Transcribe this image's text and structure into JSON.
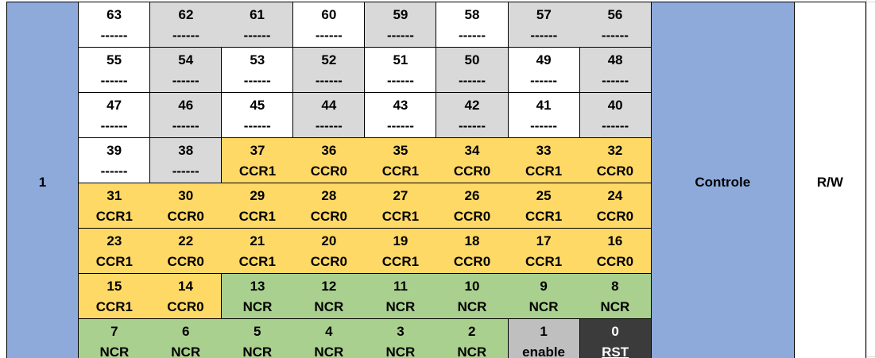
{
  "address": "1",
  "name": "Controle",
  "access": "R/W",
  "rows": [
    [
      {
        "num": "63",
        "label": "------",
        "color": "white"
      },
      {
        "num": "62",
        "label": "------",
        "color": "gray"
      },
      {
        "num": "61",
        "label": "------",
        "color": "gray"
      },
      {
        "num": "60",
        "label": "------",
        "color": "white"
      },
      {
        "num": "59",
        "label": "------",
        "color": "gray"
      },
      {
        "num": "58",
        "label": "------",
        "color": "white"
      },
      {
        "num": "57",
        "label": "------",
        "color": "gray"
      },
      {
        "num": "56",
        "label": "------",
        "color": "gray"
      }
    ],
    [
      {
        "num": "55",
        "label": "------",
        "color": "white"
      },
      {
        "num": "54",
        "label": "------",
        "color": "gray"
      },
      {
        "num": "53",
        "label": "------",
        "color": "white"
      },
      {
        "num": "52",
        "label": "------",
        "color": "gray"
      },
      {
        "num": "51",
        "label": "------",
        "color": "white"
      },
      {
        "num": "50",
        "label": "------",
        "color": "gray"
      },
      {
        "num": "49",
        "label": "------",
        "color": "white"
      },
      {
        "num": "48",
        "label": "------",
        "color": "gray"
      }
    ],
    [
      {
        "num": "47",
        "label": "------",
        "color": "white"
      },
      {
        "num": "46",
        "label": "------",
        "color": "gray"
      },
      {
        "num": "45",
        "label": "------",
        "color": "white"
      },
      {
        "num": "44",
        "label": "------",
        "color": "gray"
      },
      {
        "num": "43",
        "label": "------",
        "color": "white"
      },
      {
        "num": "42",
        "label": "------",
        "color": "gray"
      },
      {
        "num": "41",
        "label": "------",
        "color": "white"
      },
      {
        "num": "40",
        "label": "------",
        "color": "gray"
      }
    ],
    [
      {
        "num": "39",
        "label": "------",
        "color": "white"
      },
      {
        "num": "38",
        "label": "------",
        "color": "gray"
      },
      {
        "num": "37",
        "label": "CCR1",
        "color": "yellow"
      },
      {
        "num": "36",
        "label": "CCR0",
        "color": "yellow"
      },
      {
        "num": "35",
        "label": "CCR1",
        "color": "yellow"
      },
      {
        "num": "34",
        "label": "CCR0",
        "color": "yellow"
      },
      {
        "num": "33",
        "label": "CCR1",
        "color": "yellow"
      },
      {
        "num": "32",
        "label": "CCR0",
        "color": "yellow"
      }
    ],
    [
      {
        "num": "31",
        "label": "CCR1",
        "color": "yellow"
      },
      {
        "num": "30",
        "label": "CCR0",
        "color": "yellow"
      },
      {
        "num": "29",
        "label": "CCR1",
        "color": "yellow"
      },
      {
        "num": "28",
        "label": "CCR0",
        "color": "yellow"
      },
      {
        "num": "27",
        "label": "CCR1",
        "color": "yellow"
      },
      {
        "num": "26",
        "label": "CCR0",
        "color": "yellow"
      },
      {
        "num": "25",
        "label": "CCR1",
        "color": "yellow"
      },
      {
        "num": "24",
        "label": "CCR0",
        "color": "yellow"
      }
    ],
    [
      {
        "num": "23",
        "label": "CCR1",
        "color": "yellow"
      },
      {
        "num": "22",
        "label": "CCR0",
        "color": "yellow"
      },
      {
        "num": "21",
        "label": "CCR1",
        "color": "yellow"
      },
      {
        "num": "20",
        "label": "CCR0",
        "color": "yellow"
      },
      {
        "num": "19",
        "label": "CCR1",
        "color": "yellow"
      },
      {
        "num": "18",
        "label": "CCR0",
        "color": "yellow"
      },
      {
        "num": "17",
        "label": "CCR1",
        "color": "yellow"
      },
      {
        "num": "16",
        "label": "CCR0",
        "color": "yellow"
      }
    ],
    [
      {
        "num": "15",
        "label": "CCR1",
        "color": "yellow"
      },
      {
        "num": "14",
        "label": "CCR0",
        "color": "yellow"
      },
      {
        "num": "13",
        "label": "NCR",
        "color": "green"
      },
      {
        "num": "12",
        "label": "NCR",
        "color": "green"
      },
      {
        "num": "11",
        "label": "NCR",
        "color": "green"
      },
      {
        "num": "10",
        "label": "NCR",
        "color": "green"
      },
      {
        "num": "9",
        "label": "NCR",
        "color": "green"
      },
      {
        "num": "8",
        "label": "NCR",
        "color": "green"
      }
    ],
    [
      {
        "num": "7",
        "label": "NCR",
        "color": "green"
      },
      {
        "num": "6",
        "label": "NCR",
        "color": "green"
      },
      {
        "num": "5",
        "label": "NCR",
        "color": "green"
      },
      {
        "num": "4",
        "label": "NCR",
        "color": "green"
      },
      {
        "num": "3",
        "label": "NCR",
        "color": "green"
      },
      {
        "num": "2",
        "label": "NCR",
        "color": "green"
      },
      {
        "num": "1",
        "label": "enable",
        "color": "darkgray"
      },
      {
        "num": "0",
        "label": "RST",
        "color": "black"
      }
    ]
  ],
  "colors": {
    "side": "#8eaadb",
    "white": "#ffffff",
    "gray": "#d9d9d9",
    "yellow": "#ffd966",
    "green": "#a9d08e",
    "darkgray": "#bfbfbf",
    "black": "#3b3b3b"
  }
}
